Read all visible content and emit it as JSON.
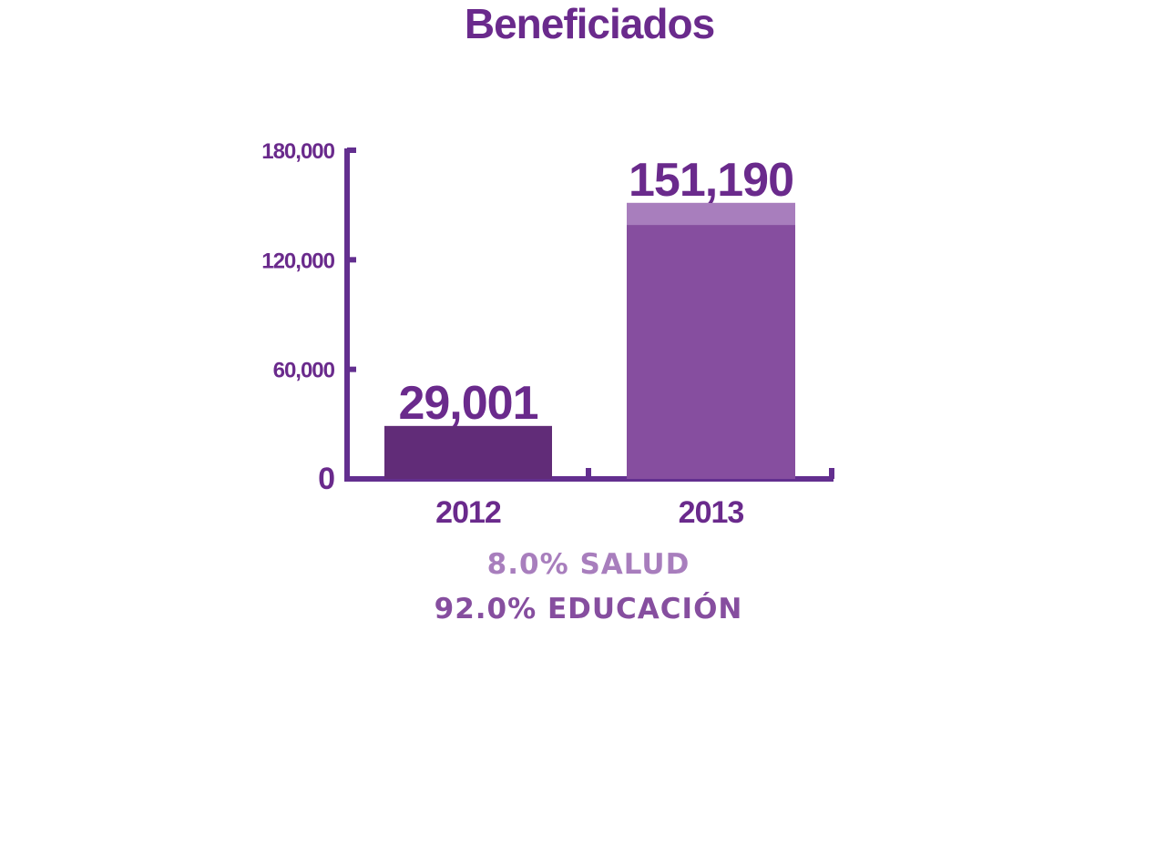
{
  "chart_data": {
    "type": "bar",
    "title": "Beneficiados",
    "categories": [
      "2012",
      "2013"
    ],
    "values": [
      29001,
      151190
    ],
    "value_labels": [
      "29,001",
      "151,190"
    ],
    "ylim": [
      0,
      180000
    ],
    "yticks": [
      0,
      60000,
      120000,
      180000
    ],
    "ytick_labels": [
      "0",
      "60,000",
      "120,000",
      "180,000"
    ],
    "breakdown_2013": [
      {
        "name": "SALUD",
        "percent": 8.0,
        "label": "8.0% SALUD",
        "color": "#a87ebd"
      },
      {
        "name": "EDUCACIÓN",
        "percent": 92.0,
        "label": "92.0% EDUCACIÓN",
        "color": "#864e9f"
      }
    ],
    "colors": {
      "axis": "#632f8f",
      "bar_2012": "#612c78",
      "text": "#6a2a8c"
    },
    "grid": false,
    "legend": "bottom-center"
  }
}
